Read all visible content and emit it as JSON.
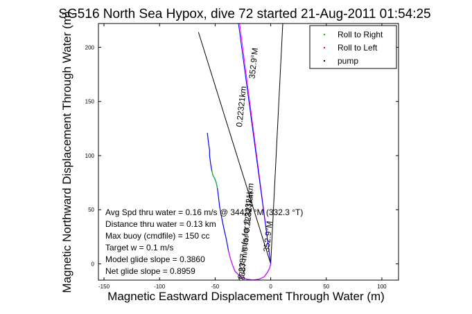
{
  "chart_data": {
    "type": "line",
    "title": "SG516 North Sea Hypox, dive 72 started 21-Aug-2011 01:54:25",
    "xlabel": "Magnetic Eastward Displacement Through Water (m)",
    "ylabel": "Magnetic Northward Displacement Through Water (m)",
    "xlim": [
      -155,
      115
    ],
    "ylim": [
      -15,
      222
    ],
    "xticks": [
      -150,
      -100,
      -50,
      0,
      50,
      100
    ],
    "yticks": [
      0,
      50,
      100,
      150,
      200
    ],
    "grid": false,
    "legend_position": "top-right",
    "legend": [
      {
        "label": "Roll to Right",
        "color": "#00cc00",
        "marker": "."
      },
      {
        "label": "Roll to Left",
        "color": "#ff0000",
        "marker": "."
      },
      {
        "label": "pump",
        "color": "#000000",
        "marker": "."
      }
    ],
    "series": [
      {
        "color": "#0000ff",
        "x": [
          -57,
          -56,
          -55,
          -55,
          -54,
          -53,
          -52,
          -50,
          -49,
          -48,
          -47,
          -46,
          -44,
          -42,
          -40,
          -38,
          -36,
          -34,
          -32,
          -28,
          -22,
          -16,
          -10,
          -6,
          -3,
          -1,
          0
        ],
        "y": [
          121,
          112,
          105,
          100,
          92,
          86,
          82,
          78,
          75,
          70,
          62,
          53,
          42,
          32,
          23,
          12,
          4,
          -2,
          -7,
          -11,
          -14,
          -15,
          -14,
          -12,
          -8,
          -4,
          0
        ]
      },
      {
        "color": "#00cc00",
        "x": [
          -53,
          -52,
          -50,
          -49,
          -48
        ],
        "y": [
          86,
          82,
          78,
          75,
          70
        ]
      },
      {
        "color": "#ff00ff",
        "x": [
          -38,
          -36,
          -34,
          -32,
          -28,
          -22,
          -16,
          -10,
          -6,
          -3,
          -1,
          0
        ],
        "y": [
          12,
          4,
          -2,
          -7,
          -11,
          -14,
          -15,
          -14,
          -12,
          -8,
          -4,
          0
        ]
      }
    ],
    "lines": [
      {
        "color": "#000000",
        "x": [
          0,
          -65
        ],
        "y": [
          0,
          214
        ]
      },
      {
        "color": "#000000",
        "x": [
          0,
          11
        ],
        "y": [
          0,
          225
        ]
      },
      {
        "color": "#ff00ff",
        "x": [
          0,
          -28
        ],
        "y": [
          0,
          222
        ]
      },
      {
        "color": "#0000ff",
        "x": [
          0,
          -29
        ],
        "y": [
          0,
          222
        ]
      }
    ],
    "annotations": [
      {
        "text": "0.22321km",
        "x": -24,
        "y": 145,
        "rotation": -84
      },
      {
        "text": "352.9°M",
        "x": -13,
        "y": 185,
        "rotation": -84
      },
      {
        "text": "0.2387 m/s for 0.22321km",
        "x": -20,
        "y": 30,
        "rotation": -84
      },
      {
        "text": "352.9°M",
        "x": 0,
        "y": 25,
        "rotation": -84
      },
      {
        "text": "0.2387 m/s for 0.22321km",
        "x": -20,
        "y": 22,
        "rotation": -84
      }
    ],
    "stats": [
      "Avg Spd thru water =  0.16 m/s @ 344.7   °M (332.3 °T)",
      "Distance thru water =  0.13 km",
      "Max buoy (cmdfile) = 150 cc",
      "Target w = 0.1 m/s",
      "Model glide slope = 0.3860",
      "Net glide slope = 0.8959"
    ]
  }
}
